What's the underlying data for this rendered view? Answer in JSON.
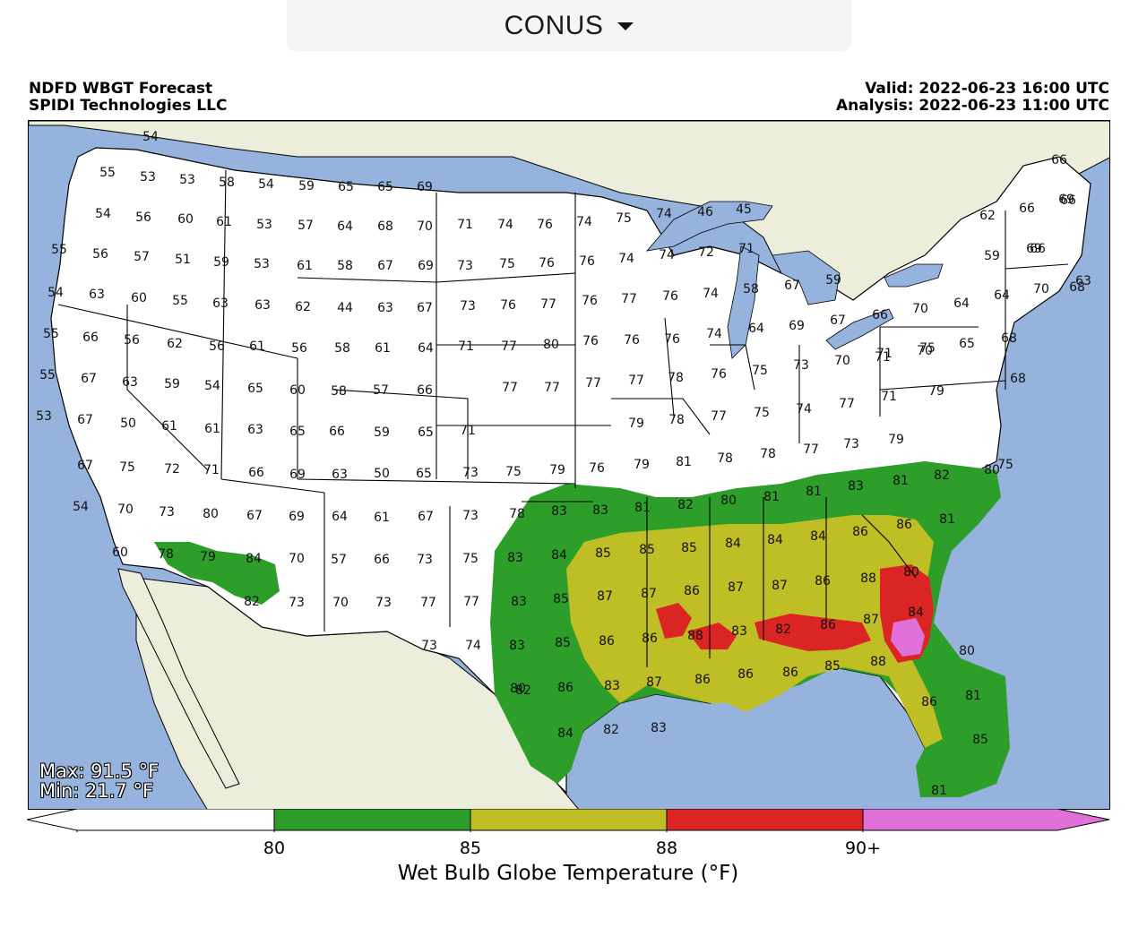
{
  "dropdown": {
    "selected": "CONUS"
  },
  "header": {
    "title": "NDFD WBGT Forecast",
    "source": "SPIDI Technologies LLC",
    "valid": "Valid: 2022-06-23 16:00 UTC",
    "analysis": "Analysis: 2022-06-23 11:00 UTC"
  },
  "stats": {
    "max": "Max: 91.5 °F",
    "min": "Min: 21.7 °F"
  },
  "colorbar": {
    "title": "Wet Bulb Globe Temperature (°F)",
    "ticks": [
      "80",
      "85",
      "88",
      "90+"
    ],
    "colors": {
      "below80": "#ffffff",
      "80to85": "#2e9e2a",
      "85to88": "#bfbe24",
      "88to90": "#db2525",
      "90plus": "#e171d8"
    }
  },
  "map_colors": {
    "ocean": "#95b3dd",
    "land_outside": "#ededdc",
    "lakes": "#95b3dd"
  },
  "point_values": {
    "north_west": [
      "54",
      "55",
      "53",
      "53",
      "58",
      "54",
      "59",
      "65",
      "65",
      "69",
      "54",
      "56",
      "60",
      "61",
      "53",
      "57",
      "64",
      "68",
      "70",
      "55",
      "56",
      "57",
      "51",
      "59",
      "53",
      "61",
      "58",
      "67",
      "69",
      "54",
      "63",
      "60",
      "55",
      "63",
      "63",
      "62",
      "44",
      "63",
      "67"
    ],
    "north_central": [
      "71",
      "74",
      "76",
      "74",
      "75",
      "74",
      "46",
      "45",
      "73",
      "75",
      "76",
      "76",
      "74",
      "74",
      "72",
      "71",
      "73",
      "76",
      "77",
      "76",
      "77",
      "76",
      "74",
      "58",
      "67",
      "59",
      "71",
      "77",
      "80",
      "76",
      "76",
      "76",
      "74",
      "64",
      "69",
      "67",
      "66"
    ],
    "north_east": [
      "66",
      "66",
      "62",
      "66",
      "69",
      "69",
      "66",
      "68",
      "59",
      "64",
      "70",
      "64",
      "70",
      "63",
      "70",
      "65",
      "68",
      "71",
      "68"
    ],
    "mid_west": [
      "55",
      "66",
      "56",
      "62",
      "56",
      "61",
      "56",
      "58",
      "61",
      "64",
      "55",
      "67",
      "63",
      "59",
      "54",
      "65",
      "60",
      "58",
      "57",
      "66",
      "53",
      "67",
      "50",
      "61",
      "61",
      "63",
      "65",
      "66",
      "59",
      "65",
      "71",
      "77",
      "77",
      "67",
      "75",
      "72",
      "71",
      "66",
      "69",
      "63",
      "50",
      "65",
      "73",
      "75",
      "79",
      "76"
    ],
    "mid_east": [
      "77",
      "77",
      "78",
      "76",
      "75",
      "73",
      "70",
      "71",
      "75",
      "79",
      "78",
      "77",
      "75",
      "74",
      "77",
      "71",
      "79",
      "79",
      "81",
      "78",
      "78",
      "77",
      "73",
      "79",
      "75"
    ],
    "south_west": [
      "54",
      "70",
      "73",
      "80",
      "67",
      "69",
      "64",
      "61",
      "67",
      "73",
      "78",
      "60",
      "78",
      "79",
      "84",
      "70",
      "57",
      "66",
      "73",
      "75",
      "82",
      "73",
      "70",
      "73",
      "77",
      "77",
      "73",
      "74",
      "80"
    ],
    "south_central": [
      "83",
      "83",
      "81",
      "82",
      "80",
      "81",
      "81",
      "83",
      "81",
      "82",
      "80",
      "83",
      "84",
      "85",
      "85",
      "85",
      "84",
      "84",
      "84",
      "86",
      "86",
      "81",
      "83",
      "85",
      "87",
      "87",
      "86",
      "87",
      "87",
      "86",
      "88",
      "80",
      "83",
      "85",
      "86",
      "86",
      "88",
      "83",
      "82",
      "86",
      "87",
      "84",
      "80",
      "82",
      "86",
      "83",
      "87",
      "86",
      "86",
      "86",
      "85",
      "88",
      "81",
      "84",
      "82",
      "83",
      "86",
      "85",
      "81"
    ]
  }
}
